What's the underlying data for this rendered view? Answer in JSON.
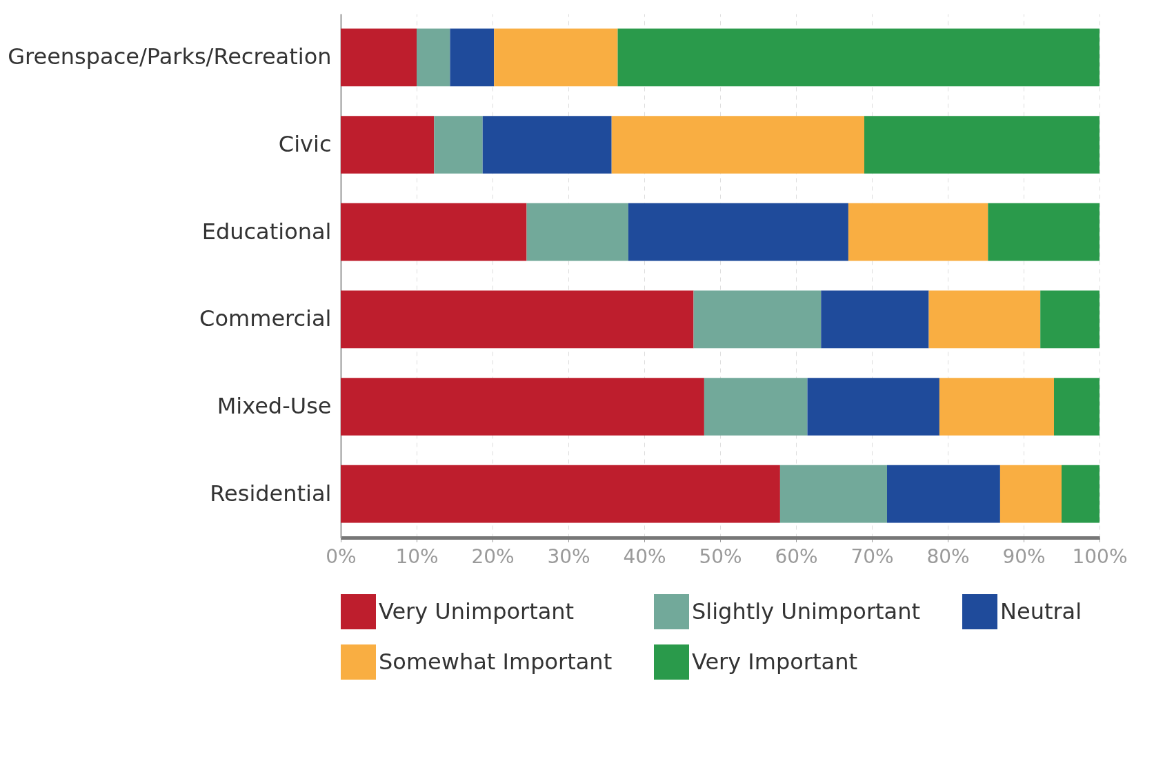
{
  "chart_data": {
    "type": "bar",
    "orientation": "horizontal",
    "stacked": true,
    "categories": [
      "Greenspace/Parks/Recreation",
      "Civic",
      "Educational",
      "Commercial",
      "Mixed-Use",
      "Residential"
    ],
    "series": [
      {
        "name": "Very Unimportant",
        "color": "#be1e2d",
        "values": [
          10.0,
          12.3,
          24.5,
          46.5,
          47.9,
          57.9
        ]
      },
      {
        "name": "Slightly Unimportant",
        "color": "#72a99a",
        "values": [
          4.4,
          6.4,
          13.4,
          16.8,
          13.6,
          14.1
        ]
      },
      {
        "name": "Neutral",
        "color": "#1f4b9b",
        "values": [
          5.8,
          17.0,
          29.0,
          14.2,
          17.4,
          14.9
        ]
      },
      {
        "name": "Somewhat Important",
        "color": "#f9ae42",
        "values": [
          16.3,
          33.3,
          18.4,
          14.7,
          15.1,
          8.1
        ]
      },
      {
        "name": "Very Important",
        "color": "#2a9a4b",
        "values": [
          63.5,
          31.0,
          14.7,
          7.8,
          6.0,
          5.0
        ]
      }
    ],
    "xlim": [
      0,
      100
    ],
    "xticks": [
      {
        "value": 0,
        "label": "0%"
      },
      {
        "value": 10,
        "label": "10%"
      },
      {
        "value": 20,
        "label": "20%"
      },
      {
        "value": 30,
        "label": "30%"
      },
      {
        "value": 40,
        "label": "40%"
      },
      {
        "value": 50,
        "label": "50%"
      },
      {
        "value": 60,
        "label": "60%"
      },
      {
        "value": 70,
        "label": "70%"
      },
      {
        "value": 80,
        "label": "80%"
      },
      {
        "value": 90,
        "label": "90%"
      },
      {
        "value": 100,
        "label": "100%"
      }
    ],
    "grid": "x",
    "legend": "bottom"
  }
}
